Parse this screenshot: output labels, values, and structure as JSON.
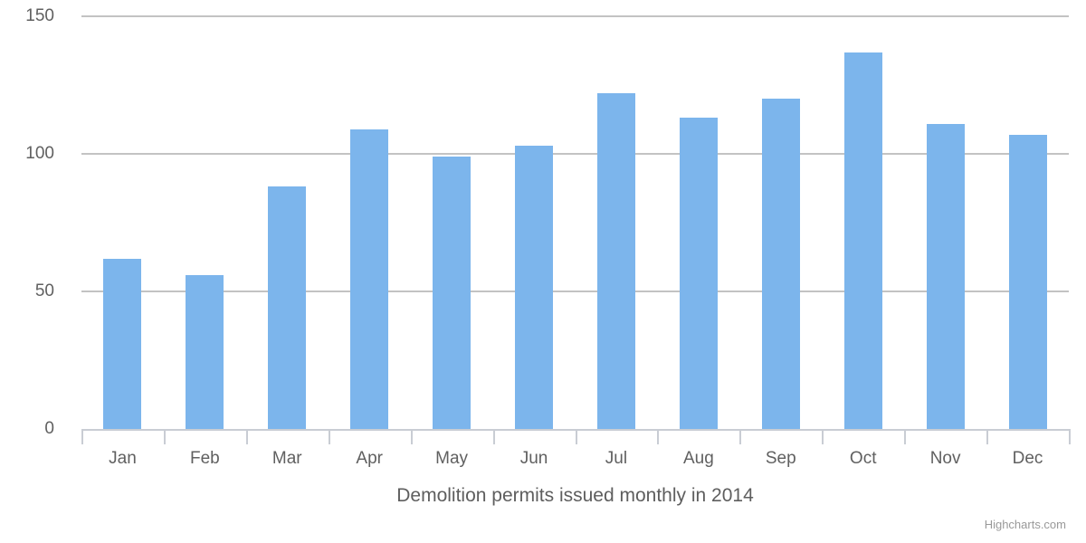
{
  "chart_data": {
    "type": "bar",
    "title": "Demolition permits issued monthly in 2014",
    "categories": [
      "Jan",
      "Feb",
      "Mar",
      "Apr",
      "May",
      "Jun",
      "Jul",
      "Aug",
      "Sep",
      "Oct",
      "Nov",
      "Dec"
    ],
    "values": [
      62,
      56,
      88,
      109,
      99,
      103,
      122,
      113,
      120,
      137,
      111,
      107
    ],
    "xlabel": "",
    "ylabel": "",
    "ylim": [
      0,
      150
    ],
    "yticks": [
      0,
      50,
      100,
      150
    ],
    "grid": true,
    "legend": "none",
    "bar_color": "#7cb5ec",
    "label_color": "#606060",
    "title_color": "#5e5e5e",
    "gridline_color": "#c3c3c3",
    "axis_color": "#c9cdd4"
  },
  "credits": {
    "label": "Highcharts.com"
  }
}
